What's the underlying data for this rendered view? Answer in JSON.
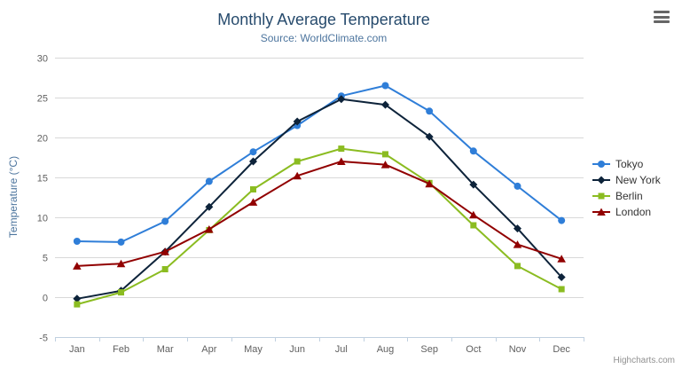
{
  "chart_data": {
    "type": "line",
    "title": "Monthly Average Temperature",
    "subtitle": "Source: WorldClimate.com",
    "xlabel": "",
    "ylabel": "Temperature (°C)",
    "ylim": [
      -5,
      30
    ],
    "y_tick_interval": 5,
    "grid": true,
    "legend_position": "right",
    "categories": [
      "Jan",
      "Feb",
      "Mar",
      "Apr",
      "May",
      "Jun",
      "Jul",
      "Aug",
      "Sep",
      "Oct",
      "Nov",
      "Dec"
    ],
    "series": [
      {
        "name": "Tokyo",
        "color": "#2f7ed8",
        "marker": "circle",
        "values": [
          7.0,
          6.9,
          9.5,
          14.5,
          18.2,
          21.5,
          25.2,
          26.5,
          23.3,
          18.3,
          13.9,
          9.6
        ]
      },
      {
        "name": "New York",
        "color": "#0d233a",
        "marker": "diamond",
        "values": [
          -0.2,
          0.8,
          5.7,
          11.3,
          17.0,
          22.0,
          24.8,
          24.1,
          20.1,
          14.1,
          8.6,
          2.5
        ]
      },
      {
        "name": "Berlin",
        "color": "#8bbc21",
        "marker": "square",
        "values": [
          -0.9,
          0.6,
          3.5,
          8.4,
          13.5,
          17.0,
          18.6,
          17.9,
          14.3,
          9.0,
          3.9,
          1.0
        ]
      },
      {
        "name": "London",
        "color": "#910000",
        "marker": "triangle",
        "values": [
          3.9,
          4.2,
          5.7,
          8.5,
          11.9,
          15.2,
          17.0,
          16.6,
          14.2,
          10.3,
          6.6,
          4.8
        ]
      }
    ],
    "credits": "Highcharts.com"
  },
  "colors": {
    "title": "#274b6d",
    "subtitle": "#4d759e",
    "axis_labels": "#606060",
    "axis_line": "#c0d0e0",
    "gridline": "#d8d8d8",
    "legend_text": "#333333"
  },
  "icons": {
    "export_menu": "hamburger"
  }
}
